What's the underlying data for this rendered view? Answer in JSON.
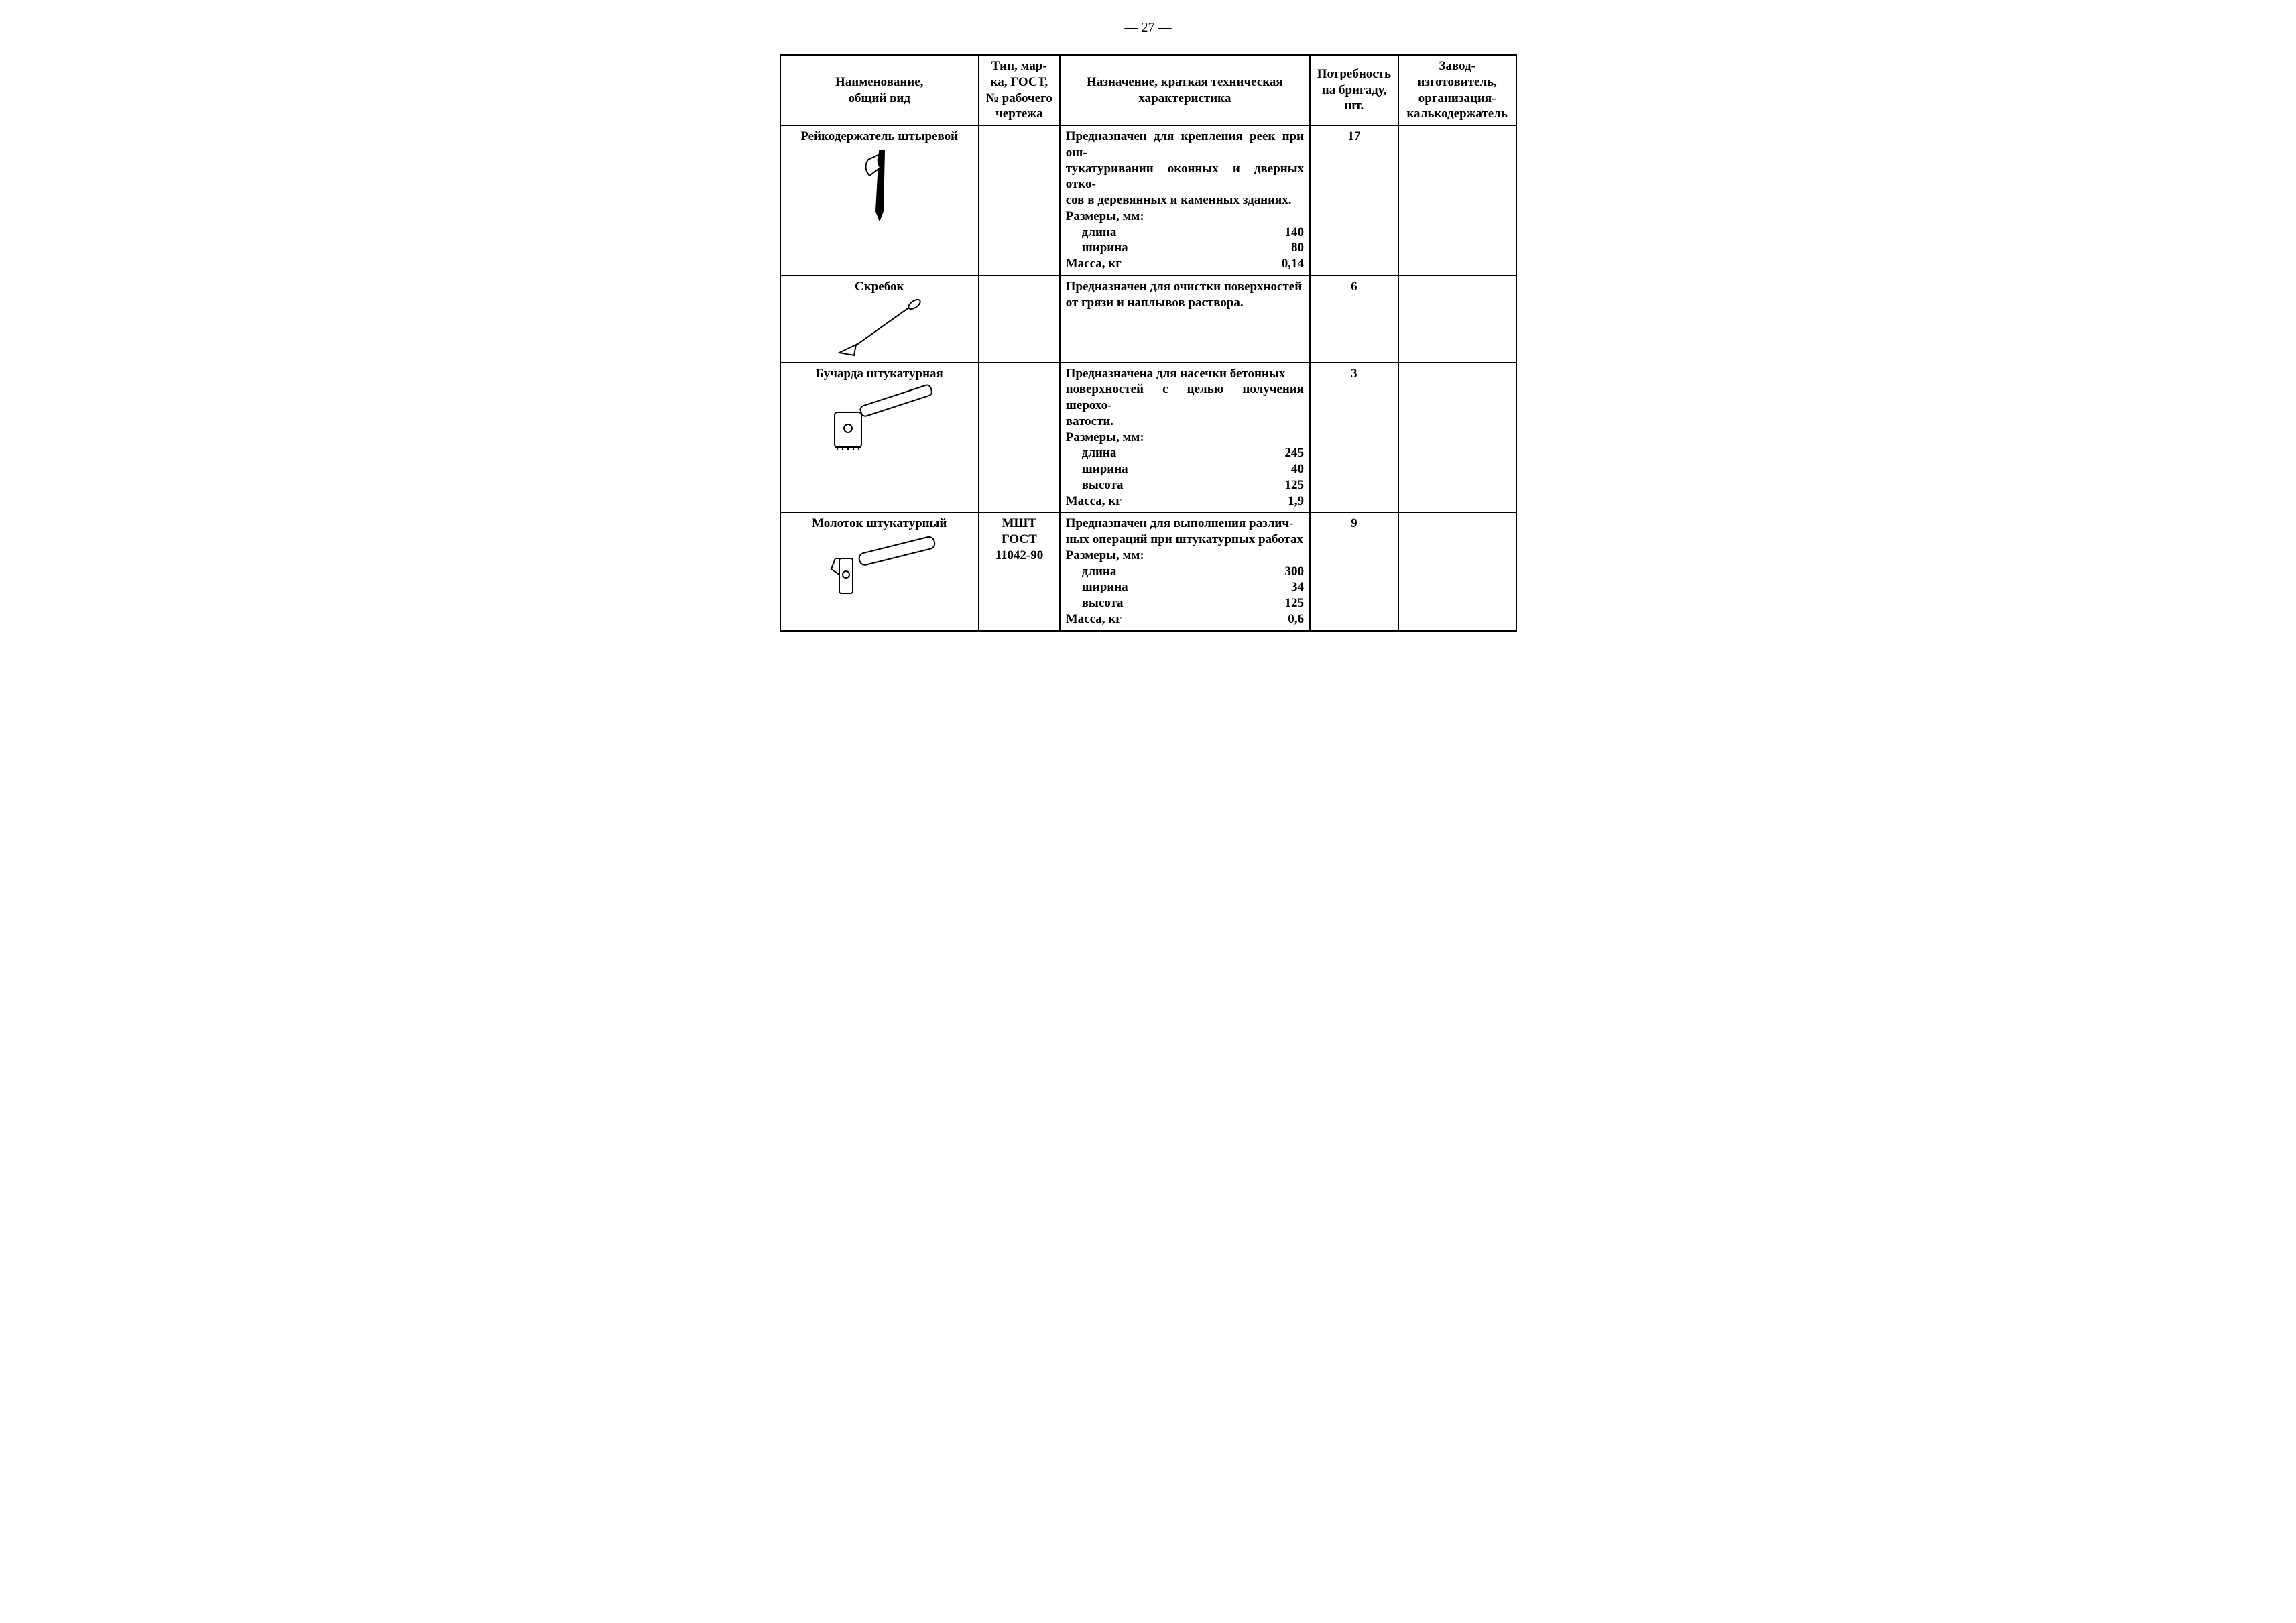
{
  "page": {
    "page_number_display": "— 27 —",
    "background_color": "#ffffff",
    "text_color": "#000000",
    "border_color": "#000000",
    "font_family": "Times New Roman",
    "base_font_size_pt": 14
  },
  "headers": {
    "col1": "Наименование,\nобщий вид",
    "col2": "Тип, мар-\nка, ГОСТ,\n№ рабочего\nчертежа",
    "col3": "Назначение, краткая техническая\nхарактеристика",
    "col4": "Потребность\nна бригаду,\nшт.",
    "col5": "Завод-\nизготовитель,\nорганизация-\nкалькодержатель"
  },
  "rows": [
    {
      "name": "Рейкодержатель штыревой",
      "type": "",
      "desc_intro": "Предназначен для крепления реек при ош-\nтукатуривании оконных и дверных отко-\nсов в деревянных и каменных зданиях.",
      "dims_head": "Размеры, мм:",
      "dims": [
        {
          "label": "длина",
          "value": "140"
        },
        {
          "label": "ширина",
          "value": "80"
        }
      ],
      "mass_label": "Масса, кг",
      "mass_value": "0,14",
      "qty": "17",
      "maker": "",
      "icon": "pin-holder"
    },
    {
      "name": "Скребок",
      "type": "",
      "desc_intro": "Предназначен для очистки поверхностей\nот грязи и наплывов раствора.",
      "dims_head": "",
      "dims": [],
      "mass_label": "",
      "mass_value": "",
      "qty": "6",
      "maker": "",
      "icon": "scraper"
    },
    {
      "name": "Бучарда штукатурная",
      "type": "",
      "desc_intro": "Предназначена для насечки бетонных\nповерхностей с целью получения шерохо-\nватости.",
      "dims_head": "Размеры, мм:",
      "dims": [
        {
          "label": "длина",
          "value": "245"
        },
        {
          "label": "ширина",
          "value": "40"
        },
        {
          "label": "высота",
          "value": "125"
        }
      ],
      "mass_label": "Масса, кг",
      "mass_value": "1,9",
      "qty": "3",
      "maker": "",
      "icon": "bush-hammer"
    },
    {
      "name": "Молоток штукатурный",
      "type": "МШТ\nГОСТ\n11042-90",
      "desc_intro": "Предназначен для выполнения различ-\nных операций при штукатурных работах",
      "dims_head": "Размеры, мм:",
      "dims": [
        {
          "label": "длина",
          "value": "300"
        },
        {
          "label": "ширина",
          "value": "34"
        },
        {
          "label": "высота",
          "value": "125"
        }
      ],
      "mass_label": "Масса, кг",
      "mass_value": "0,6",
      "qty": "9",
      "maker": "",
      "icon": "hammer"
    }
  ]
}
